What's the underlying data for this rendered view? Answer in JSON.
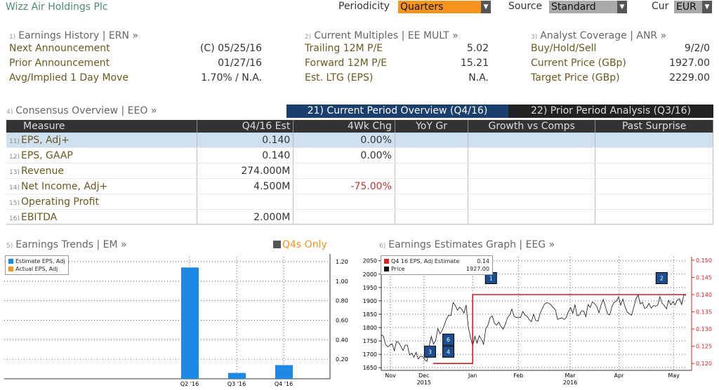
{
  "header": {
    "title": "Wizz Air Holdings Plc",
    "periodicity_label": "Periodicity",
    "periodicity_value": "Quarters",
    "source_label": "Source",
    "source_value": "Standard",
    "cur_label": "Cur",
    "cur_value": "EUR",
    "accent": "#f7941d"
  },
  "sections": {
    "ern": {
      "num": "1)",
      "title": "Earnings History | ERN »",
      "rows": [
        {
          "label": "Next Announcement",
          "value": "(C)  05/25/16"
        },
        {
          "label": "Prior Announcement",
          "value": "01/27/16"
        },
        {
          "label": "Avg/Implied 1 Day Move",
          "value": "1.70% / N.A."
        }
      ]
    },
    "eemult": {
      "num": "2)",
      "title": "Current Multiples | EE MULT »",
      "rows": [
        {
          "label": "Trailing 12M P/E",
          "value": "5.02"
        },
        {
          "label": "Forward 12M P/E",
          "value": "15.21"
        },
        {
          "label": "Est. LTG (EPS)",
          "value": "N.A."
        }
      ]
    },
    "anr": {
      "num": "3)",
      "title": "Analyst Coverage | ANR »",
      "rows": [
        {
          "label": "Buy/Hold/Sell",
          "value": "9/2/0"
        },
        {
          "label": "Current Price (GBp)",
          "value": "1927.00"
        },
        {
          "label": "Target Price (GBp)",
          "value": "2229.00"
        }
      ]
    }
  },
  "consensus": {
    "num": "4)",
    "title": "Consensus Overview | EEO »",
    "tab_current": "21) Current Period Overview (Q4/16)",
    "tab_prior": "22) Prior Period Analysis (Q3/16)",
    "columns": [
      "Measure",
      "Q4/16 Est",
      "4Wk Chg",
      "YoY Gr",
      "Growth vs Comps",
      "Past Surprise"
    ],
    "rows": [
      {
        "num": "11)",
        "measure": "EPS, Adj+",
        "est": "0.140",
        "chg": "0.00%"
      },
      {
        "num": "12)",
        "measure": "EPS, GAAP",
        "est": "0.140",
        "chg": "0.00%"
      },
      {
        "num": "13)",
        "measure": "Revenue",
        "est": "274.000M",
        "chg": ""
      },
      {
        "num": "14)",
        "measure": "Net Income, Adj+",
        "est": "4.500M",
        "chg": "-75.00%"
      },
      {
        "num": "15)",
        "measure": "Operating Profit",
        "est": "",
        "chg": ""
      },
      {
        "num": "16)",
        "measure": "EBITDA",
        "est": "2.000M",
        "chg": ""
      }
    ]
  },
  "trends": {
    "num": "5)",
    "title": "Earnings Trends | EM »",
    "q4_toggle": "Q4s Only",
    "legend": [
      "Estimate EPS, Adj",
      "Actual EPS, Adj"
    ]
  },
  "eeg": {
    "num": "6)",
    "title": "Earnings Estimates Graph | EEG »",
    "legend_est": "Q4 16 EPS, Adj Estimate",
    "legend_est_val": "0.14",
    "legend_price": "Price",
    "legend_price_val": "1927.00",
    "months": [
      "Nov",
      "Dec",
      "Jan",
      "Feb",
      "Mar",
      "Apr",
      "May"
    ],
    "years": [
      "2015",
      "2016"
    ]
  },
  "chart_data": [
    {
      "type": "bar",
      "categories": [
        "Q2 '16",
        "Q3 '16",
        "Q4 '16"
      ],
      "series": [
        {
          "name": "Estimate EPS, Adj",
          "values": [
            1.14,
            0.06,
            0.14
          ]
        }
      ],
      "yticks": [
        "0.20",
        "0.40",
        "0.60",
        "0.80",
        "1.00",
        "1.20"
      ],
      "ylim": [
        0,
        1.25
      ],
      "colors": {
        "estimate": "#1e88e5",
        "actual": "#f7941d"
      }
    },
    {
      "type": "line",
      "price_yticks": [
        "1650",
        "1700",
        "1750",
        "1800",
        "1850",
        "1900",
        "1950",
        "2000",
        "2050"
      ],
      "est_yticks": [
        "0.120",
        "0.125",
        "0.130",
        "0.135",
        "0.140",
        "0.145",
        "0.150"
      ],
      "price_ylim": [
        1640,
        2065
      ],
      "est_ylim": [
        0.118,
        0.151
      ],
      "estimate_steps": [
        {
          "x": 0.17,
          "y": 0.12
        },
        {
          "x": 0.27,
          "y": 0.12
        },
        {
          "x": 0.3,
          "y": 0.14
        },
        {
          "x": 1.0,
          "y": 0.14
        }
      ],
      "markers": [
        {
          "label": "3",
          "x": 0.16,
          "price": 1710
        },
        {
          "label": "4",
          "x": 0.22,
          "price": 1710
        },
        {
          "label": "6",
          "x": 0.22,
          "price": 1755
        },
        {
          "label": "1",
          "x": 0.36,
          "price": 1985
        },
        {
          "label": "2",
          "x": 0.92,
          "price": 1985
        }
      ]
    }
  ]
}
